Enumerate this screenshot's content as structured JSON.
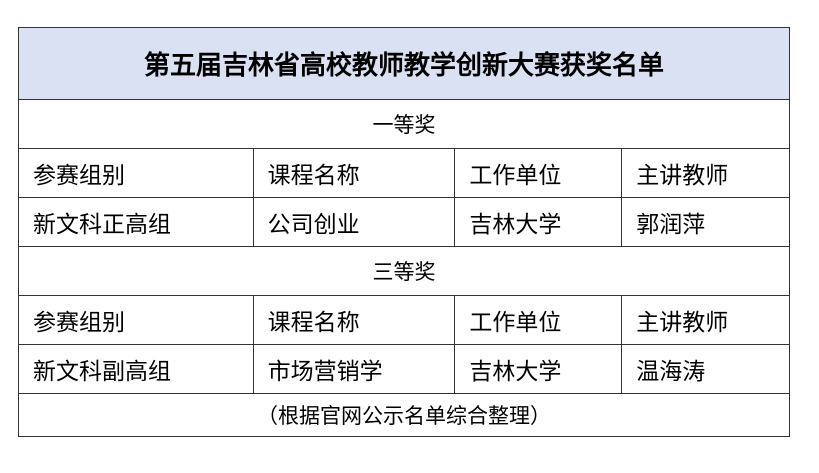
{
  "title": "第五届吉林省高校教师教学创新大赛获奖名单",
  "headers": [
    "参赛组别",
    "课程名称",
    "工作单位",
    "主讲教师"
  ],
  "sections": [
    {
      "label": "一等奖",
      "rows": [
        [
          "新文科正高组",
          "公司创业",
          "吉林大学",
          "郭润萍"
        ]
      ]
    },
    {
      "label": "三等奖",
      "rows": [
        [
          "新文科副高组",
          "市场营销学",
          "吉林大学",
          "温海涛"
        ]
      ]
    }
  ],
  "note": "（根据官网公示名单综合整理）"
}
